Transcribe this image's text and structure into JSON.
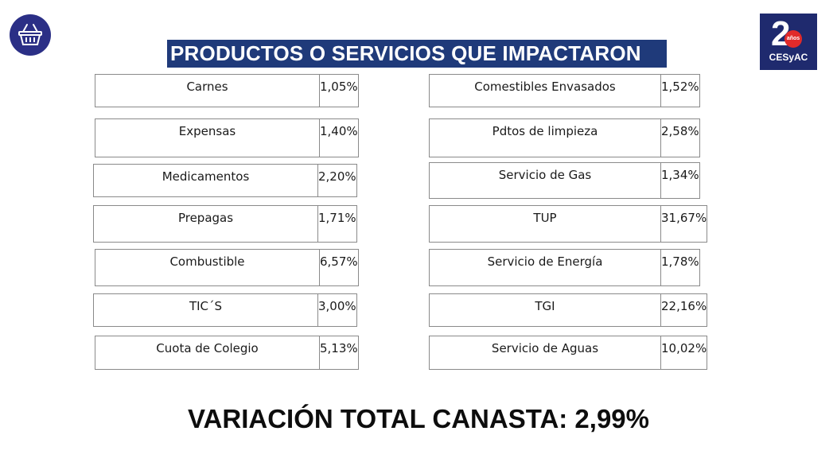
{
  "header": {
    "title": "PRODUCTOS O SERVICIOS QUE IMPACTARON",
    "logo_number": "2",
    "logo_badge": "años",
    "logo_org": "CESyAC",
    "colors": {
      "title_bg": "#1f3a7a",
      "logo_bg": "#1f2a6e",
      "basket_icon_bg": "#2b2f86",
      "badge_red": "#e12a2a"
    }
  },
  "left_items": [
    {
      "name": "Carnes",
      "value": "1,05%"
    },
    {
      "name": "Expensas",
      "value": "1,40%"
    },
    {
      "name": "Medicamentos",
      "value": "2,20%"
    },
    {
      "name": "Prepagas",
      "value": "1,71%"
    },
    {
      "name": "Combustible",
      "value": "6,57%"
    },
    {
      "name": "TIC´S",
      "value": "3,00%"
    },
    {
      "name": "Cuota de Colegio",
      "value": "5,13%"
    }
  ],
  "right_items": [
    {
      "name": "Comestibles Envasados",
      "value": "1,52%"
    },
    {
      "name": "Pdtos de limpieza",
      "value": "2,58%"
    },
    {
      "name": "Servicio de Gas",
      "value": "1,34%"
    },
    {
      "name": "TUP",
      "value": "31,67%"
    },
    {
      "name": "Servicio de Energía",
      "value": "1,78%"
    },
    {
      "name": "TGI",
      "value": "22,16%"
    },
    {
      "name": "Servicio de Aguas",
      "value": "10,02%"
    }
  ],
  "footer": {
    "total_text": "VARIACIÓN TOTAL CANASTA: 2,99%"
  }
}
